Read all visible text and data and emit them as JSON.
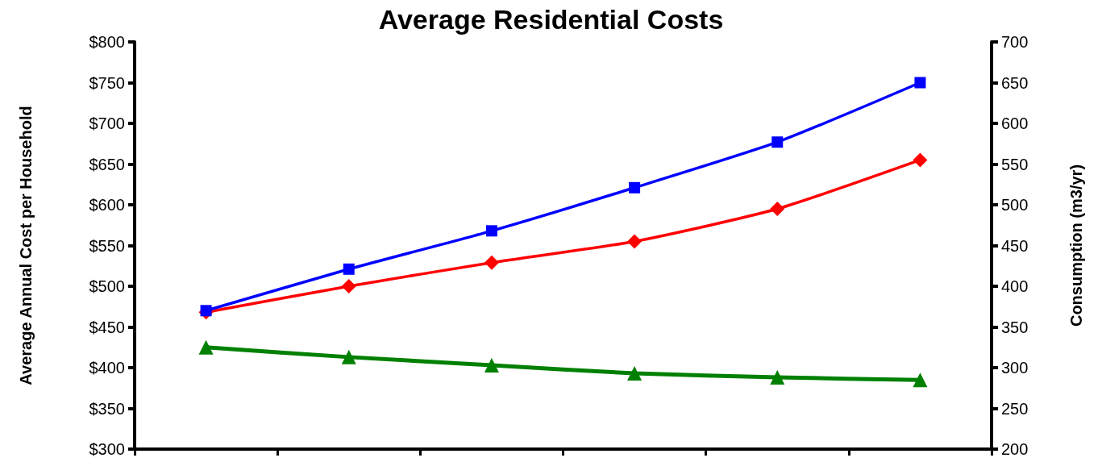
{
  "chart_data": {
    "type": "line",
    "title": "Average Residential Costs",
    "ylabel": "Average Annual Cost per Household",
    "y2label": "Consumption (m3/yr)",
    "categories": [
      null,
      null,
      null,
      null,
      null,
      null
    ],
    "series": [
      {
        "color": "#0000ff",
        "marker": "square",
        "values": [
          470,
          521,
          568,
          621,
          677,
          750
        ]
      },
      {
        "color": "#ff0000",
        "marker": "diamond",
        "values": [
          468,
          500,
          529,
          555,
          595,
          655
        ]
      },
      {
        "color": "#008000",
        "marker": "triangle",
        "axis": "y2",
        "values": [
          325,
          313,
          303,
          293,
          288,
          285
        ]
      }
    ],
    "ylim": [
      300,
      800
    ],
    "yticks": [
      {
        "value": 300,
        "label": "$300"
      },
      {
        "value": 350,
        "label": "$350"
      },
      {
        "value": 400,
        "label": "$400"
      },
      {
        "value": 450,
        "label": "$450"
      },
      {
        "value": 500,
        "label": "$500"
      },
      {
        "value": 550,
        "label": "$550"
      },
      {
        "value": 600,
        "label": "$600"
      },
      {
        "value": 650,
        "label": "$650"
      },
      {
        "value": 700,
        "label": "$700"
      },
      {
        "value": 750,
        "label": "$750"
      },
      {
        "value": 800,
        "label": "$800"
      }
    ],
    "y2lim": [
      200,
      700
    ],
    "y2ticks": [
      200,
      250,
      300,
      350,
      400,
      450,
      500,
      550,
      600,
      650,
      700
    ],
    "tick_labels": "y"
  }
}
